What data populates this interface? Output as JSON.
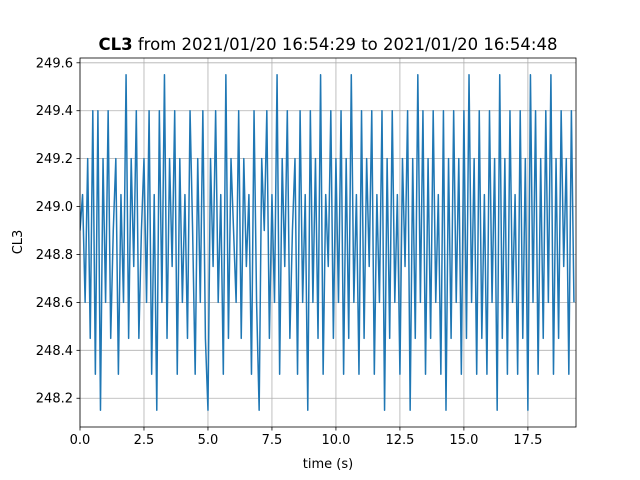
{
  "chart_data": {
    "type": "line",
    "title": {
      "bold": "CL3",
      "text": "from 2021/01/20 16:54:29 to 2021/01/20 16:54:48"
    },
    "xlabel": "time (s)",
    "ylabel": "CL3",
    "color": "#1f77b4",
    "grid": true,
    "xlim": [
      0,
      19.38
    ],
    "ylim": [
      248.08,
      249.62
    ],
    "xticks": [
      {
        "value": 0,
        "label": "0.0"
      },
      {
        "value": 2.5,
        "label": "2.5"
      },
      {
        "value": 5,
        "label": "5.0"
      },
      {
        "value": 7.5,
        "label": "7.5"
      },
      {
        "value": 10,
        "label": "10.0"
      },
      {
        "value": 12.5,
        "label": "12.5"
      },
      {
        "value": 15,
        "label": "15.0"
      },
      {
        "value": 17.5,
        "label": "17.5"
      }
    ],
    "yticks": [
      248.2,
      248.4,
      248.6,
      248.8,
      {
        "value": 249,
        "label": "249.0"
      },
      249.2,
      249.4,
      249.6
    ],
    "x": [
      0,
      0.1,
      0.2,
      0.3,
      0.4,
      0.5,
      0.6,
      0.7,
      0.8,
      0.9,
      1,
      1.1,
      1.2,
      1.3,
      1.4,
      1.5,
      1.6,
      1.7,
      1.8,
      1.9,
      2,
      2.1,
      2.2,
      2.3,
      2.4,
      2.5,
      2.6,
      2.7,
      2.8,
      2.9,
      3,
      3.1,
      3.2,
      3.3,
      3.4,
      3.5,
      3.6,
      3.7,
      3.8,
      3.9,
      4,
      4.1,
      4.2,
      4.3,
      4.4,
      4.5,
      4.6,
      4.7,
      4.8,
      4.9,
      5,
      5.1,
      5.2,
      5.3,
      5.4,
      5.5,
      5.6,
      5.7,
      5.8,
      5.9,
      6,
      6.1,
      6.2,
      6.3,
      6.4,
      6.5,
      6.6,
      6.7,
      6.8,
      6.9,
      7,
      7.1,
      7.2,
      7.3,
      7.4,
      7.5,
      7.6,
      7.7,
      7.8,
      7.9,
      8,
      8.1,
      8.2,
      8.3,
      8.4,
      8.5,
      8.6,
      8.7,
      8.8,
      8.9,
      9,
      9.1,
      9.2,
      9.3,
      9.4,
      9.5,
      9.6,
      9.7,
      9.8,
      9.9,
      10,
      10.1,
      10.2,
      10.3,
      10.4,
      10.5,
      10.6,
      10.7,
      10.8,
      10.9,
      11,
      11.1,
      11.2,
      11.3,
      11.4,
      11.5,
      11.6,
      11.7,
      11.8,
      11.9,
      12,
      12.1,
      12.2,
      12.3,
      12.4,
      12.5,
      12.6,
      12.7,
      12.8,
      12.9,
      13,
      13.1,
      13.2,
      13.3,
      13.4,
      13.5,
      13.6,
      13.7,
      13.8,
      13.9,
      14,
      14.1,
      14.2,
      14.3,
      14.4,
      14.5,
      14.6,
      14.7,
      14.8,
      14.9,
      15,
      15.1,
      15.2,
      15.3,
      15.4,
      15.5,
      15.6,
      15.7,
      15.8,
      15.9,
      16,
      16.1,
      16.2,
      16.3,
      16.4,
      16.5,
      16.6,
      16.7,
      16.8,
      16.9,
      17,
      17.1,
      17.2,
      17.3,
      17.4,
      17.5,
      17.6,
      17.7,
      17.8,
      17.9,
      18,
      18.1,
      18.2,
      18.3,
      18.4,
      18.5,
      18.6,
      18.7,
      18.8,
      18.9,
      19,
      19.1,
      19.2,
      19.3
    ],
    "values": [
      248.9,
      249.05,
      248.6,
      249.2,
      248.45,
      249.4,
      248.3,
      249.4,
      248.15,
      249.2,
      248.6,
      249.4,
      248.45,
      248.9,
      249.2,
      248.3,
      249.05,
      248.6,
      249.55,
      248.45,
      249.2,
      248.75,
      249.4,
      248.45,
      248.9,
      249.2,
      248.6,
      249.4,
      248.3,
      249.05,
      248.15,
      249.4,
      248.6,
      249.55,
      248.45,
      249.2,
      248.75,
      249.4,
      248.3,
      249.2,
      248.6,
      249.05,
      248.45,
      249.4,
      248.9,
      248.3,
      249.2,
      248.6,
      249.4,
      248.45,
      248.15,
      249.2,
      248.75,
      249.4,
      248.6,
      249.05,
      248.3,
      249.55,
      248.45,
      249.2,
      248.9,
      248.6,
      249.4,
      248.45,
      249.2,
      248.75,
      249.05,
      248.3,
      249.4,
      248.6,
      248.15,
      249.2,
      248.9,
      249.4,
      248.45,
      249.05,
      248.6,
      249.55,
      248.3,
      249.2,
      248.75,
      249.4,
      248.45,
      248.9,
      249.2,
      248.3,
      249.4,
      248.6,
      249.05,
      248.15,
      249.4,
      248.6,
      249.2,
      248.45,
      249.55,
      248.3,
      249.05,
      248.75,
      249.4,
      248.45,
      249.2,
      248.6,
      249.4,
      248.3,
      249.2,
      248.45,
      249.55,
      248.6,
      249.05,
      248.3,
      249.4,
      248.45,
      249.2,
      248.75,
      249.4,
      248.3,
      249.05,
      248.6,
      249.4,
      248.15,
      249.2,
      248.45,
      249.4,
      248.6,
      249.05,
      248.3,
      249.2,
      248.75,
      249.4,
      248.15,
      249.2,
      248.45,
      249.55,
      248.6,
      249.4,
      248.3,
      249.2,
      248.45,
      249.4,
      248.6,
      249.05,
      248.3,
      249.4,
      248.15,
      249.2,
      248.45,
      249.4,
      248.6,
      249.2,
      248.3,
      249.4,
      248.45,
      249.55,
      248.6,
      249.2,
      248.3,
      249.4,
      248.45,
      249.05,
      248.3,
      249.4,
      248.6,
      249.2,
      248.15,
      249.55,
      248.45,
      249.2,
      248.3,
      249.4,
      248.6,
      249.05,
      248.3,
      249.4,
      248.45,
      249.2,
      248.15,
      249.55,
      248.6,
      249.4,
      248.3,
      249.2,
      248.45,
      249.4,
      248.6,
      249.55,
      248.3,
      249.2,
      248.45,
      249.4,
      248.75,
      249.2,
      248.3,
      249.4,
      248.6
    ]
  }
}
